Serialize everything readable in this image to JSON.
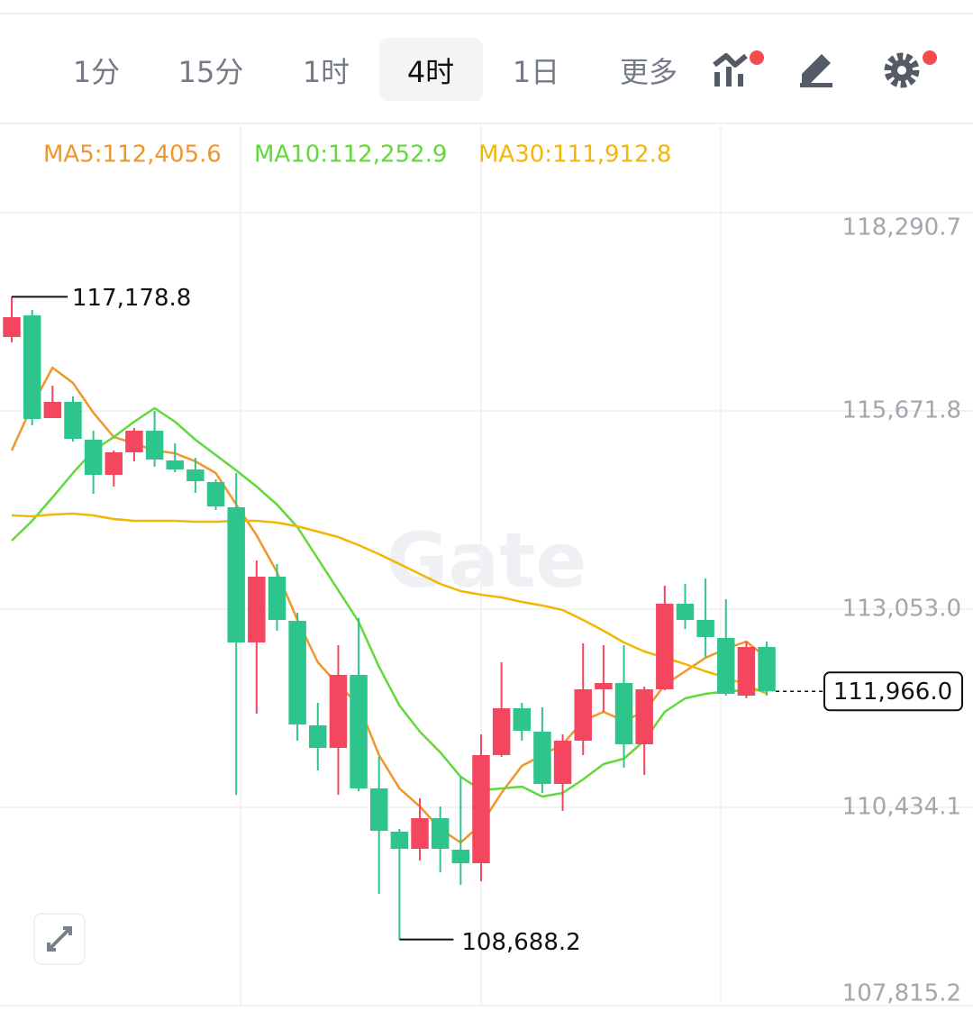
{
  "toolbar": {
    "tabs": [
      "1分",
      "15分",
      "1时",
      "4时",
      "1日",
      "更多"
    ],
    "selected": 3
  },
  "chart_data": {
    "type": "candlestick",
    "categories": [
      null,
      null,
      null,
      null,
      null,
      null,
      null,
      null,
      null,
      null,
      null,
      null,
      null,
      null,
      null,
      null,
      null,
      null,
      null,
      null,
      null,
      null,
      null,
      null,
      null,
      null,
      null,
      null,
      null,
      null,
      null,
      null,
      null,
      null,
      null,
      null,
      null,
      null
    ],
    "open": [
      116647.9,
      116933.6,
      115576.6,
      115790.9,
      115290.9,
      114826.6,
      115124.2,
      115409.9,
      115017.1,
      114898.1,
      114731.4,
      114398.1,
      112612.5,
      113481.5,
      112898.2,
      111517.3,
      111219.7,
      112183.9,
      110684.0,
      110112.7,
      109886.5,
      110291.2,
      109874.6,
      109696.0,
      111124.5,
      111743.5,
      111434.0,
      110743.6,
      111315.0,
      111993.5,
      112076.8,
      111267.3,
      111993.5,
      113124.4,
      112910.1,
      112672.0,
      111910.2,
      112553.0
    ],
    "high": [
      117178.8,
      117005.1,
      116005.1,
      115862.3,
      115409.9,
      115148.0,
      115445.6,
      115671.8,
      115243.3,
      115052.8,
      114767.1,
      114850.4,
      113695.8,
      113648.1,
      113005.3,
      111814.9,
      112576.8,
      112933.9,
      111100.7,
      110148.4,
      110553.1,
      110446.0,
      110838.8,
      111398.3,
      112350.6,
      111814.9,
      111755.4,
      111398.3,
      112600.6,
      112576.8,
      112576.8,
      112029.2,
      113362.4,
      113386.3,
      113457.7,
      113183.9,
      112624.4,
      112624.4
    ],
    "low": [
      116576.5,
      115481.4,
      115576.6,
      115267.1,
      114576.7,
      114671.9,
      115005.2,
      114933.8,
      114862.3,
      114588.6,
      114362.4,
      110600.7,
      111672.1,
      112767.2,
      111315.0,
      110922.1,
      110600.7,
      110648.3,
      109291.3,
      108688.2,
      109731.7,
      109577.0,
      109410.3,
      109457.9,
      111100.7,
      111315.0,
      110624.5,
      110386.4,
      111124.5,
      111695.9,
      110957.8,
      110862.6,
      111981.6,
      112791.1,
      112410.1,
      111910.2,
      111874.4,
      111910.2
    ],
    "close": [
      116909.8,
      115564.7,
      115790.9,
      115302.8,
      114826.6,
      115124.2,
      115409.9,
      115029.0,
      114898.1,
      114743.3,
      114410.0,
      112612.5,
      113481.5,
      112910.1,
      111529.2,
      111219.7,
      112183.9,
      110684.0,
      110124.6,
      109886.5,
      110291.2,
      109886.5,
      109696.0,
      111124.5,
      111743.5,
      111445.9,
      110743.6,
      111315.0,
      111993.5,
      112076.8,
      111267.3,
      111993.5,
      113124.4,
      112910.1,
      112683.9,
      111934.0,
      112553.0,
      111966.0
    ],
    "up_color": "#f4465e",
    "down_color": "#2ec58d",
    "series": [
      {
        "name": "MA5:112,405.6",
        "color": "#f0962a",
        "values": [
          115148,
          115743,
          116243,
          116041,
          115648,
          115327,
          115243,
          115148,
          115112,
          115005,
          114850,
          114434,
          114029,
          113541,
          112910,
          112351,
          112053,
          111791,
          111125,
          110684,
          110446,
          110148,
          109970,
          110208,
          110625,
          110982,
          111125,
          111267,
          111577,
          111696,
          111577,
          111696,
          112053,
          112232,
          112410,
          112529,
          112624,
          112410
        ]
      },
      {
        "name": "MA10:112,252.9",
        "color": "#62d93a",
        "values": [
          113958,
          114220,
          114529,
          114850,
          115148,
          115327,
          115529,
          115708,
          115529,
          115291,
          115089,
          114886,
          114672,
          114434,
          114136,
          113720,
          113303,
          112886,
          112291,
          111779,
          111434,
          111160,
          110839,
          110660,
          110684,
          110708,
          110577,
          110625,
          110803,
          111005,
          111077,
          111315,
          111696,
          111874,
          111934,
          111966,
          111982,
          111982
        ]
      },
      {
        "name": "MA30:111,912.8",
        "color": "#f2b705",
        "values": [
          114291,
          114279,
          114303,
          114315,
          114291,
          114243,
          114220,
          114220,
          114220,
          114208,
          114208,
          114220,
          114220,
          114196,
          114148,
          114077,
          114005,
          113898,
          113779,
          113648,
          113517,
          113386,
          113291,
          113243,
          113208,
          113148,
          113101,
          113041,
          112910,
          112767,
          112613,
          112494,
          112410,
          112327,
          112232,
          112148,
          112053,
          111934
        ]
      }
    ],
    "ylim": [
      107815.2,
      118290.7
    ],
    "yticks": [
      {
        "value": 107815.2,
        "label": "107,815.2"
      },
      {
        "value": 110434.1,
        "label": "110,434.1"
      },
      {
        "value": 113053.0,
        "label": "113,053.0"
      },
      {
        "value": 115671.8,
        "label": "115,671.8"
      },
      {
        "value": 118290.7,
        "label": "118,290.7"
      }
    ],
    "grid": true,
    "high_marker": {
      "value": 117178.8,
      "label": "117,178.8"
    },
    "low_marker": {
      "value": 108688.2,
      "label": "108,688.2"
    },
    "last_price": {
      "value": 111966.0,
      "label": "111,966.0"
    },
    "watermark": "Gate"
  }
}
